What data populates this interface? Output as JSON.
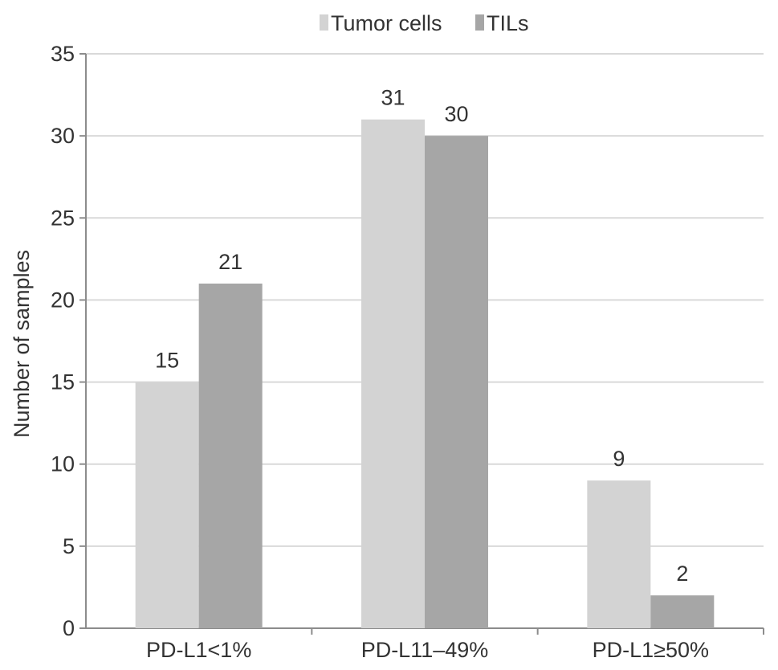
{
  "chart_data": {
    "type": "bar",
    "title": "",
    "xlabel": "",
    "ylabel": "Number of samples",
    "categories": [
      "PD-L1<1%",
      "PD-L11–49%",
      "PD-L1≥50%"
    ],
    "series": [
      {
        "name": "Tumor cells",
        "values": [
          15,
          31,
          9
        ],
        "color": "#d3d3d3"
      },
      {
        "name": "TILs",
        "values": [
          21,
          30,
          2
        ],
        "color": "#a6a6a6"
      }
    ],
    "ylim": [
      0,
      35
    ],
    "yticks": [
      0,
      5,
      10,
      15,
      20,
      25,
      30,
      35
    ],
    "grid": true,
    "legend": "top-center",
    "data_labels": true
  }
}
